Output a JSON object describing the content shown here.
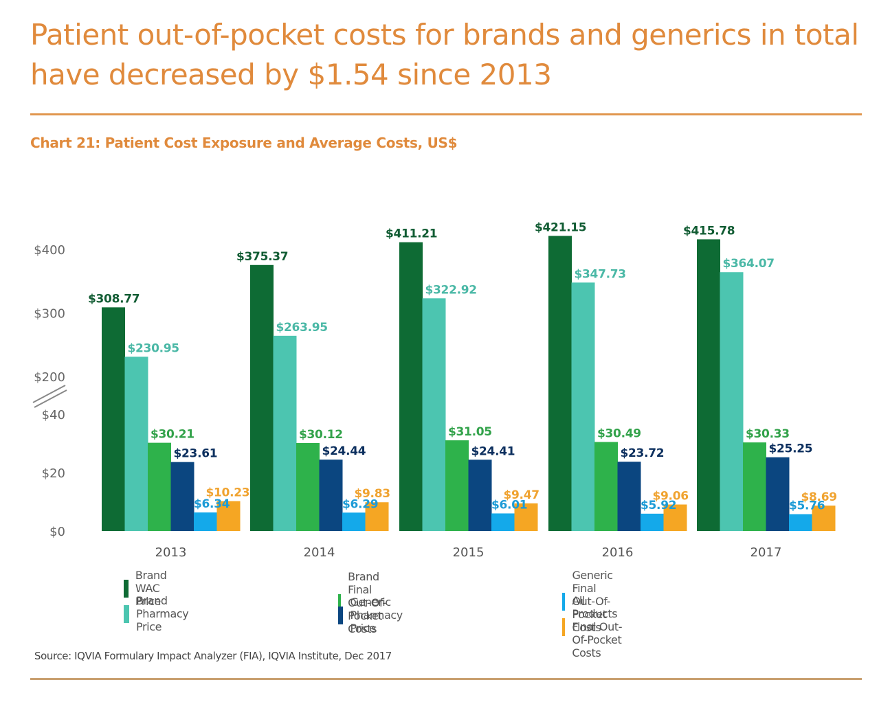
{
  "headline": "Patient out-of-pocket costs for brands and generics in total have decreased by $1.54 since 2013",
  "source": "Source: IQVIA Formulary Impact Analyzer (FIA), IQVIA Institute, Dec 2017",
  "chart_data": {
    "type": "bar",
    "title": "Chart 21: Patient Cost Exposure and Average Costs, US$",
    "xlabel": "",
    "ylabel": "",
    "categories": [
      "2013",
      "2014",
      "2015",
      "2016",
      "2017"
    ],
    "y_axis": {
      "broken": true,
      "lower_segment": [
        0,
        40
      ],
      "upper_segment": [
        200,
        400
      ],
      "tick_labels": [
        "$0",
        "$20",
        "$40",
        "$200",
        "$300",
        "$400"
      ]
    },
    "grid": false,
    "legend_position": "bottom",
    "series": [
      {
        "name": "Brand WAC Price",
        "color": "#0e6b34",
        "values": [
          308.77,
          375.37,
          411.21,
          421.15,
          415.78
        ],
        "labels": [
          "$308.77",
          "$375.37",
          "$411.21",
          "$421.15",
          "$415.78"
        ]
      },
      {
        "name": "Brand Pharmacy Price",
        "color": "#4cc5b0",
        "values": [
          230.95,
          263.95,
          322.92,
          347.73,
          364.07
        ],
        "labels": [
          "$230.95",
          "$263.95",
          "$322.92",
          "$347.73",
          "$364.07"
        ]
      },
      {
        "name": "Brand Final Out-Of-Pocket Costs",
        "color": "#2eb24b",
        "values": [
          30.21,
          30.12,
          31.05,
          30.49,
          30.33
        ],
        "labels": [
          "$30.21",
          "$30.12",
          "$31.05",
          "$30.49",
          "$30.33"
        ]
      },
      {
        "name": "Generic Pharmacy Price",
        "color": "#0b4680",
        "values": [
          23.61,
          24.44,
          24.41,
          23.72,
          25.25
        ],
        "labels": [
          "$23.61",
          "$24.44",
          "$24.41",
          "$23.72",
          "$25.25"
        ]
      },
      {
        "name": "Generic Final Out-Of-Pocket Costs",
        "color": "#14a9ea",
        "values": [
          6.34,
          6.29,
          6.01,
          5.92,
          5.76
        ],
        "labels": [
          "$6.34",
          "$6.29",
          "$6.01",
          "$5.92",
          "$5.76"
        ]
      },
      {
        "name": "All Products Final Out-Of-Pocket Costs",
        "color": "#f5a623",
        "values": [
          10.23,
          9.83,
          9.47,
          9.06,
          8.69
        ],
        "labels": [
          "$10.23",
          "$9.83",
          "$9.47",
          "$9.06",
          "$8.69"
        ]
      }
    ]
  },
  "label_colors": [
    "#115c33",
    "#4ab8a6",
    "#32a24a",
    "#0c2f5e",
    "#1d9bd6",
    "#f0a330"
  ]
}
